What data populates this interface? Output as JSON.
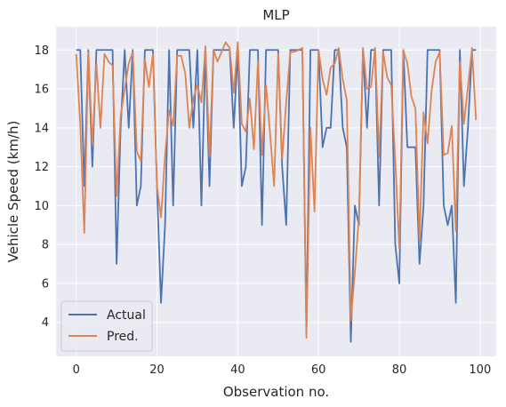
{
  "chart_data": {
    "type": "line",
    "title": "MLP",
    "xlabel": "Observation no.",
    "ylabel": "Vehicle Speed (km/h)",
    "xlim": [
      -5,
      104
    ],
    "ylim": [
      2.25,
      19.2
    ],
    "xticks": [
      0,
      20,
      40,
      60,
      80,
      100
    ],
    "yticks": [
      4,
      6,
      8,
      10,
      12,
      14,
      16,
      18
    ],
    "grid": true,
    "background_color": "#EAEAF2",
    "legend_position": "lower left",
    "x": [
      0,
      1,
      2,
      3,
      4,
      5,
      6,
      7,
      8,
      9,
      10,
      11,
      12,
      13,
      14,
      15,
      16,
      17,
      18,
      19,
      20,
      21,
      22,
      23,
      24,
      25,
      26,
      27,
      28,
      29,
      30,
      31,
      32,
      33,
      34,
      35,
      36,
      37,
      38,
      39,
      40,
      41,
      42,
      43,
      44,
      45,
      46,
      47,
      48,
      49,
      50,
      51,
      52,
      53,
      54,
      55,
      56,
      57,
      58,
      59,
      60,
      61,
      62,
      63,
      64,
      65,
      66,
      67,
      68,
      69,
      70,
      71,
      72,
      73,
      74,
      75,
      76,
      77,
      78,
      79,
      80,
      81,
      82,
      83,
      84,
      85,
      86,
      87,
      88,
      89,
      90,
      91,
      92,
      93,
      94,
      95,
      96,
      97,
      98,
      99
    ],
    "series": [
      {
        "name": "Actual",
        "color": "#4C72B0",
        "values": [
          18,
          18,
          11,
          18,
          12,
          18,
          18,
          18,
          18,
          18,
          7,
          14,
          18,
          14,
          18,
          10,
          11,
          18,
          18,
          18,
          11,
          5,
          9,
          18,
          10,
          18,
          18,
          18,
          18,
          14,
          18,
          10,
          18,
          11,
          18,
          18,
          18,
          18,
          18,
          14,
          18,
          11,
          12,
          18,
          18,
          18,
          9,
          18,
          18,
          18,
          18,
          12,
          9,
          18,
          18,
          18,
          18,
          3.5,
          18,
          18,
          18,
          13,
          14,
          14,
          18,
          18,
          14,
          13,
          3,
          10,
          9,
          18,
          14,
          18,
          18,
          10,
          18,
          18,
          18,
          8,
          6,
          18,
          13,
          13,
          13,
          7,
          10,
          18,
          18,
          18,
          18,
          10,
          9,
          10,
          5,
          18,
          11,
          14,
          18,
          18
        ]
      },
      {
        "name": "Pred.",
        "color": "#DD8452",
        "values": [
          17.8,
          14.2,
          8.6,
          17.9,
          13.1,
          17.3,
          14.0,
          17.8,
          17.4,
          17.2,
          10.5,
          14.6,
          16.0,
          17.3,
          17.9,
          12.8,
          12.3,
          17.5,
          16.1,
          17.8,
          11.0,
          9.4,
          12.6,
          14.9,
          14.1,
          17.7,
          17.7,
          16.8,
          14.0,
          15.5,
          16.2,
          15.3,
          18.2,
          12.5,
          18.0,
          17.4,
          17.9,
          18.4,
          18.1,
          15.8,
          18.4,
          14.2,
          13.8,
          15.5,
          12.9,
          17.4,
          12.6,
          16.2,
          13.7,
          11.0,
          17.8,
          12.4,
          15.3,
          17.9,
          17.9,
          18.0,
          18.1,
          3.2,
          14.0,
          9.7,
          18.0,
          16.5,
          15.7,
          17.1,
          17.3,
          18.1,
          16.5,
          15.4,
          4.1,
          6.6,
          9.4,
          18.1,
          16.0,
          16.1,
          18.1,
          12.5,
          17.9,
          16.6,
          16.2,
          12.3,
          7.8,
          18.0,
          17.3,
          15.6,
          15.0,
          8.2,
          14.8,
          13.2,
          15.9,
          17.4,
          17.9,
          12.6,
          12.7,
          14.1,
          8.7,
          17.4,
          14.2,
          16.1,
          18.1,
          14.4
        ]
      }
    ]
  }
}
